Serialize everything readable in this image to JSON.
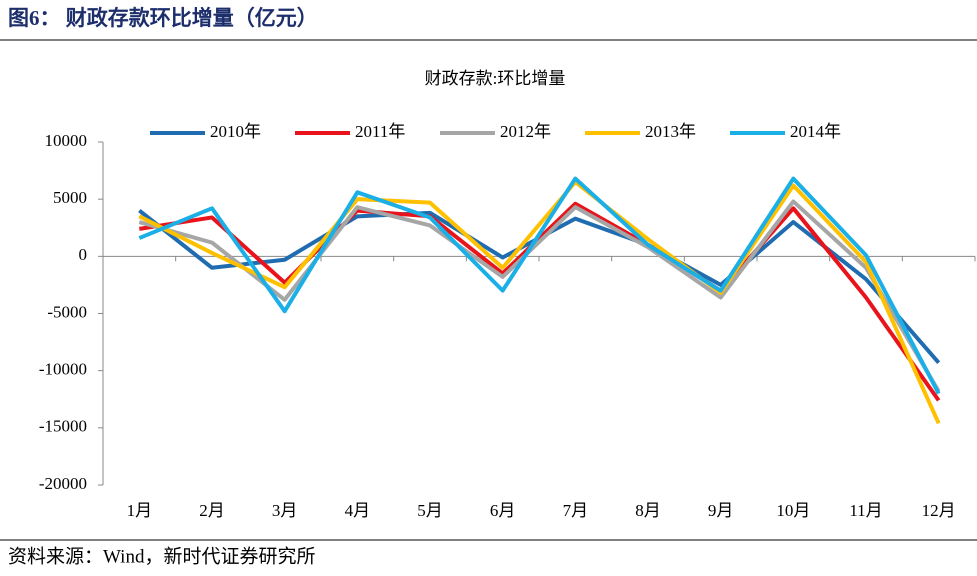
{
  "header": {
    "title": "图6： 财政存款环比增量（亿元）"
  },
  "chart_data": {
    "type": "line",
    "title": "财政存款:环比增量",
    "categories": [
      "1月",
      "2月",
      "3月",
      "4月",
      "5月",
      "6月",
      "7月",
      "8月",
      "9月",
      "10月",
      "11月",
      "12月"
    ],
    "series": [
      {
        "name": "2010年",
        "color": "#1f6cb0",
        "values": [
          4000,
          -1000,
          -300,
          3500,
          3800,
          -100,
          3300,
          1000,
          -2500,
          3000,
          -2000,
          -9300
        ]
      },
      {
        "name": "2011年",
        "color": "#e8131b",
        "values": [
          2400,
          3400,
          -2300,
          4000,
          3500,
          -1500,
          4600,
          1000,
          -3000,
          4200,
          -3600,
          -12600
        ]
      },
      {
        "name": "2012年",
        "color": "#a6a6a6",
        "values": [
          3000,
          1200,
          -3800,
          4300,
          2700,
          -1800,
          4300,
          800,
          -3600,
          4800,
          -1000,
          -11800
        ]
      },
      {
        "name": "2013年",
        "color": "#ffc000",
        "values": [
          3500,
          300,
          -2700,
          5000,
          4700,
          -1000,
          6500,
          1500,
          -3200,
          6200,
          -500,
          -14600
        ]
      },
      {
        "name": "2014年",
        "color": "#1aafe6",
        "values": [
          1600,
          4200,
          -4800,
          5600,
          3400,
          -3000,
          6800,
          1000,
          -3000,
          6800,
          100,
          -12000
        ]
      }
    ],
    "ylim": [
      -20000,
      10000
    ],
    "yticks": [
      10000,
      5000,
      0,
      -5000,
      -10000,
      -15000,
      -20000
    ],
    "grid": false,
    "legend": "top"
  },
  "footer": {
    "source": "资料来源：Wind，新时代证券研究所"
  }
}
